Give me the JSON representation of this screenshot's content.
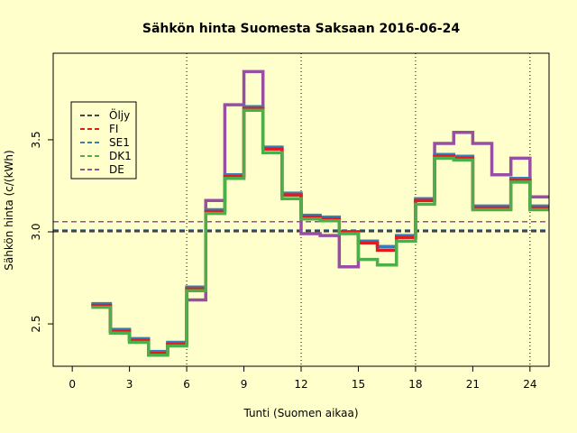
{
  "chart_data": {
    "type": "line",
    "step": true,
    "title": "Sähkön hinta Suomesta Saksaan 2016-06-24",
    "xlabel": "Tunti (Suomen aikaa)",
    "ylabel": "Sähkön hinta (c/(kWh)",
    "xlim": [
      -1,
      25
    ],
    "ylim": [
      2.27,
      3.97
    ],
    "xticks": [
      0,
      3,
      6,
      9,
      12,
      15,
      18,
      21,
      24
    ],
    "yticks": [
      2.5,
      3.0,
      3.5
    ],
    "vlines": [
      6,
      12,
      18,
      24
    ],
    "legend_position": "top-left",
    "background": "#ffffcc",
    "series": [
      {
        "name": "DE",
        "color": "#984ea3",
        "x": [
          1,
          2,
          3,
          4,
          5,
          6,
          7,
          8,
          9,
          10,
          11,
          12,
          13,
          14,
          15,
          16,
          17,
          18,
          19,
          20,
          21,
          22,
          23,
          24
        ],
        "values": [
          2.6,
          2.46,
          2.41,
          2.34,
          2.39,
          2.63,
          3.17,
          3.69,
          3.87,
          3.45,
          3.2,
          2.99,
          2.98,
          2.81,
          2.94,
          2.92,
          2.97,
          3.17,
          3.48,
          3.54,
          3.48,
          3.31,
          3.4,
          3.19
        ],
        "hline": 3.055
      },
      {
        "name": "SE1",
        "color": "#377eb8",
        "x": [
          1,
          2,
          3,
          4,
          5,
          6,
          7,
          8,
          9,
          10,
          11,
          12,
          13,
          14,
          15,
          16,
          17,
          18,
          19,
          20,
          21,
          22,
          23,
          24
        ],
        "values": [
          2.61,
          2.47,
          2.42,
          2.35,
          2.4,
          2.7,
          3.12,
          3.31,
          3.68,
          3.46,
          3.21,
          3.09,
          3.08,
          3.0,
          2.95,
          2.92,
          2.98,
          3.18,
          3.42,
          3.41,
          3.14,
          3.14,
          3.29,
          3.14
        ],
        "hline": 3.01
      },
      {
        "name": "FI",
        "color": "#e41a1c",
        "x": [
          1,
          2,
          3,
          4,
          5,
          6,
          7,
          8,
          9,
          10,
          11,
          12,
          13,
          14,
          15,
          16,
          17,
          18,
          19,
          20,
          21,
          22,
          23,
          24
        ],
        "values": [
          2.6,
          2.46,
          2.41,
          2.34,
          2.39,
          2.69,
          3.11,
          3.3,
          3.67,
          3.45,
          3.2,
          3.08,
          3.07,
          3.0,
          2.94,
          2.9,
          2.97,
          3.17,
          3.41,
          3.4,
          3.13,
          3.13,
          3.28,
          3.13
        ],
        "hline": 3.005
      },
      {
        "name": "DK1",
        "color": "#4daf4a",
        "x": [
          1,
          2,
          3,
          4,
          5,
          6,
          7,
          8,
          9,
          10,
          11,
          12,
          13,
          14,
          15,
          16,
          17,
          18,
          19,
          20,
          21,
          22,
          23,
          24
        ],
        "values": [
          2.59,
          2.45,
          2.4,
          2.33,
          2.38,
          2.68,
          3.1,
          3.29,
          3.66,
          3.43,
          3.18,
          3.07,
          3.06,
          2.99,
          2.85,
          2.82,
          2.95,
          3.15,
          3.4,
          3.39,
          3.12,
          3.12,
          3.27,
          3.12
        ],
        "hline": 3.0
      },
      {
        "name": "Öljy",
        "color": "#444444",
        "x": [],
        "values": [],
        "hline": 3.005
      }
    ],
    "legend_order": [
      "Öljy",
      "FI",
      "SE1",
      "DK1",
      "DE"
    ]
  }
}
